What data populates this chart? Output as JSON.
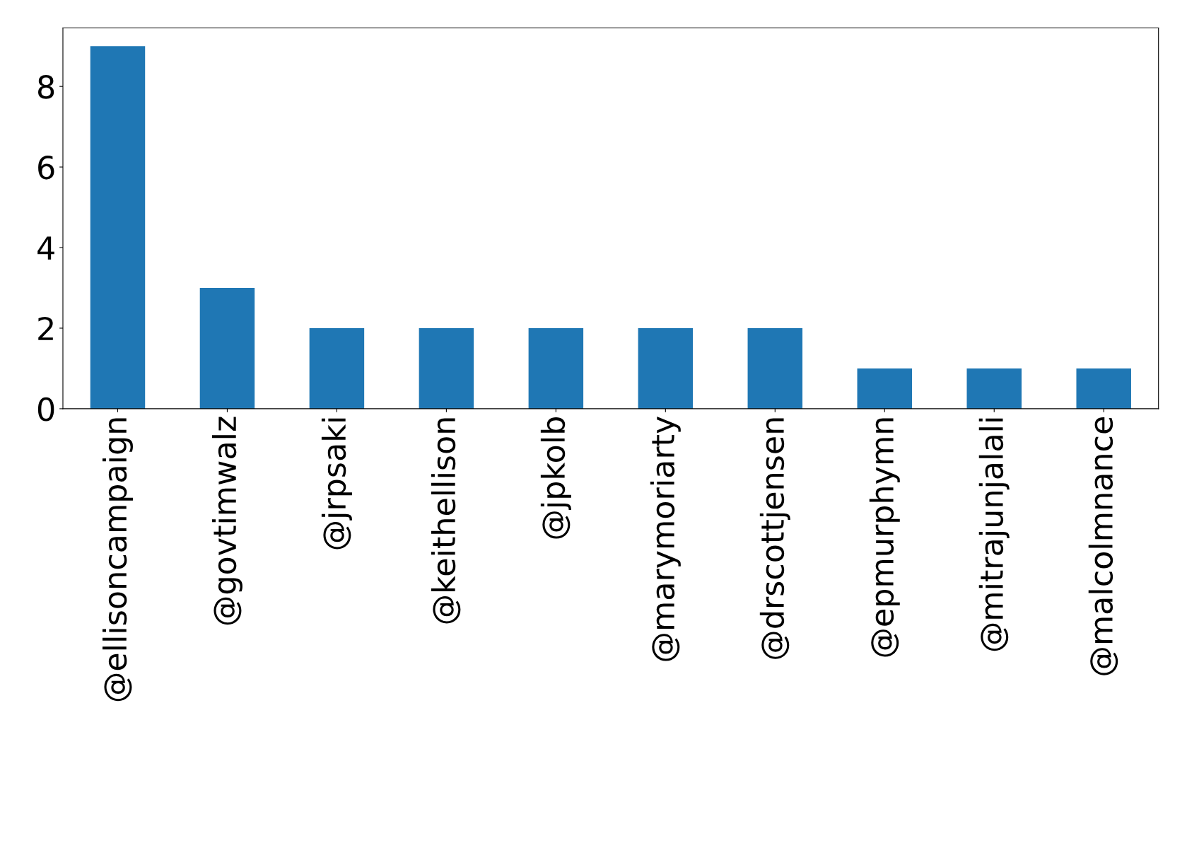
{
  "chart_data": {
    "type": "bar",
    "categories": [
      "@ellisoncampaign",
      "@govtimwalz",
      "@jrpsaki",
      "@keithellison",
      "@jpkolb",
      "@marymoriarty",
      "@drscottjensen",
      "@epmurphymn",
      "@mitrajunjalali",
      "@malcolmnance"
    ],
    "values": [
      9,
      3,
      2,
      2,
      2,
      2,
      2,
      1,
      1,
      1
    ],
    "color": "#1f77b4",
    "ylim": [
      0,
      9.45
    ],
    "yticks": [
      0,
      2,
      4,
      6,
      8
    ],
    "grid": false,
    "legend": false
  }
}
